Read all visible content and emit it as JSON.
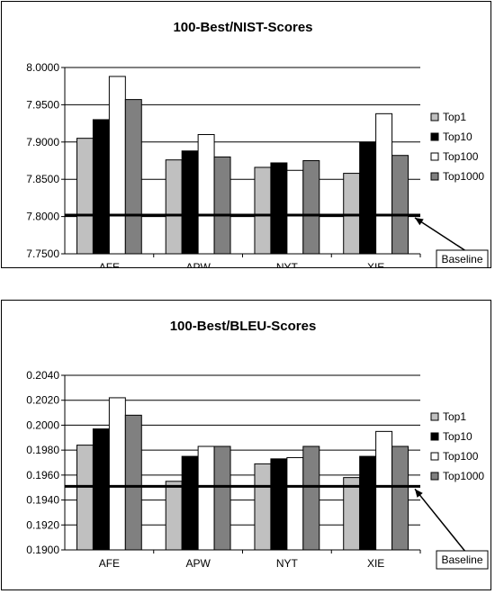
{
  "chart_data": [
    {
      "type": "bar",
      "title": "100-Best/NIST-Scores",
      "categories": [
        "AFE",
        "APW",
        "NYT",
        "XIE"
      ],
      "ylim": [
        7.75,
        8.0
      ],
      "yticks": [
        7.75,
        7.8,
        7.85,
        7.9,
        7.95,
        8.0
      ],
      "ytick_labels": [
        "7.7500",
        "7.8000",
        "7.8500",
        "7.9000",
        "7.9500",
        "8.0000"
      ],
      "grid": true,
      "legend": "right",
      "series": [
        {
          "name": "Top1",
          "color": "#c0c0c0",
          "values": [
            7.905,
            7.876,
            7.866,
            7.858
          ]
        },
        {
          "name": "Top10",
          "color": "#000000",
          "values": [
            7.93,
            7.888,
            7.872,
            7.9
          ]
        },
        {
          "name": "Top100",
          "color": "#ffffff",
          "values": [
            7.988,
            7.91,
            7.862,
            7.938
          ]
        },
        {
          "name": "Top1000",
          "color": "#808080",
          "values": [
            7.957,
            7.88,
            7.875,
            7.882
          ]
        }
      ],
      "baseline": {
        "label": "Baseline",
        "value": 7.802
      }
    },
    {
      "type": "bar",
      "title": "100-Best/BLEU-Scores",
      "categories": [
        "AFE",
        "APW",
        "NYT",
        "XIE"
      ],
      "ylim": [
        0.19,
        0.204
      ],
      "yticks": [
        0.19,
        0.192,
        0.194,
        0.196,
        0.198,
        0.2,
        0.202,
        0.204
      ],
      "ytick_labels": [
        "0.1900",
        "0.1920",
        "0.1940",
        "0.1960",
        "0.1980",
        "0.2000",
        "0.2020",
        "0.2040"
      ],
      "grid": true,
      "legend": "right",
      "series": [
        {
          "name": "Top1",
          "color": "#c0c0c0",
          "values": [
            0.1984,
            0.1955,
            0.1969,
            0.1958
          ]
        },
        {
          "name": "Top10",
          "color": "#000000",
          "values": [
            0.1997,
            0.1975,
            0.1973,
            0.1975
          ]
        },
        {
          "name": "Top100",
          "color": "#ffffff",
          "values": [
            0.2022,
            0.1983,
            0.1974,
            0.1995
          ]
        },
        {
          "name": "Top1000",
          "color": "#808080",
          "values": [
            0.2008,
            0.1983,
            0.1983,
            0.1983
          ]
        }
      ],
      "baseline": {
        "label": "Baseline",
        "value": 0.1951
      }
    }
  ]
}
